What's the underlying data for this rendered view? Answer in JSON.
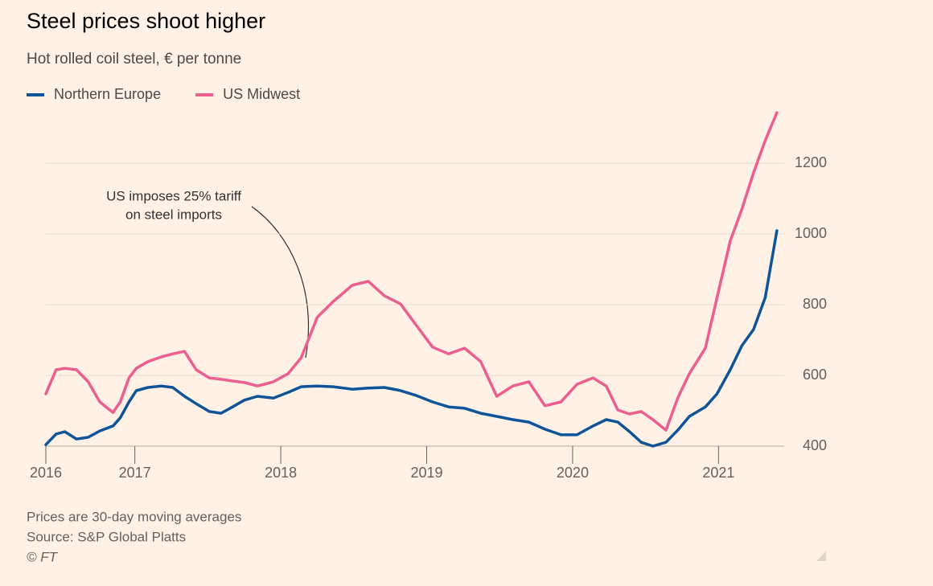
{
  "chart_data": {
    "type": "line",
    "title": "Steel prices shoot higher",
    "subtitle": "Hot rolled coil steel, € per tonne",
    "annotation_lines": [
      "US imposes 25% tariff",
      "on steel imports"
    ],
    "note": "Prices are 30-day moving averages",
    "source": "Source: S&P Global Platts",
    "copyright": "© FT",
    "x": [
      2016.39,
      2016.46,
      2016.52,
      2016.6,
      2016.68,
      2016.76,
      2016.85,
      2016.9,
      2016.96,
      2017.01,
      2017.09,
      2017.18,
      2017.26,
      2017.34,
      2017.42,
      2017.51,
      2017.59,
      2017.67,
      2017.75,
      2017.84,
      2017.95,
      2018.05,
      2018.14,
      2018.25,
      2018.36,
      2018.49,
      2018.6,
      2018.71,
      2018.82,
      2018.93,
      2019.04,
      2019.15,
      2019.26,
      2019.37,
      2019.48,
      2019.59,
      2019.7,
      2019.81,
      2019.92,
      2020.03,
      2020.14,
      2020.23,
      2020.31,
      2020.39,
      2020.47,
      2020.55,
      2020.64,
      2020.72,
      2020.8,
      2020.91,
      2020.99,
      2021.08,
      2021.16,
      2021.24,
      2021.32,
      2021.4
    ],
    "series": [
      {
        "name": "Northern Europe",
        "color": "#0f5499",
        "values": [
          404,
          434,
          441,
          420,
          425,
          443,
          457,
          480,
          525,
          557,
          566,
          570,
          566,
          541,
          520,
          498,
          493,
          511,
          530,
          541,
          536,
          552,
          568,
          570,
          568,
          561,
          564,
          566,
          557,
          543,
          525,
          511,
          507,
          493,
          484,
          475,
          468,
          448,
          432,
          432,
          457,
          475,
          468,
          441,
          411,
          400,
          411,
          445,
          484,
          511,
          548,
          616,
          684,
          730,
          820,
          1009
        ]
      },
      {
        "name": "US Midwest",
        "color": "#eb5e8d",
        "values": [
          548,
          616,
          620,
          616,
          582,
          525,
          495,
          525,
          593,
          620,
          639,
          652,
          661,
          668,
          616,
          593,
          589,
          584,
          580,
          570,
          582,
          605,
          650,
          764,
          809,
          855,
          866,
          825,
          802,
          741,
          680,
          661,
          677,
          639,
          541,
          570,
          582,
          514,
          525,
          575,
          593,
          570,
          502,
          491,
          498,
          475,
          445,
          536,
          605,
          677,
          820,
          980,
          1070,
          1173,
          1264,
          1343
        ]
      }
    ],
    "xlim": [
      2016.39,
      2021.45
    ],
    "xticks": [
      {
        "value": 2016.39,
        "label": "2016"
      },
      2017,
      2018,
      2019,
      2020,
      2021
    ],
    "ylim": [
      400,
      1350
    ],
    "yticks": [
      400,
      600,
      800,
      1000,
      1200
    ],
    "grid": true,
    "legend": "top"
  }
}
